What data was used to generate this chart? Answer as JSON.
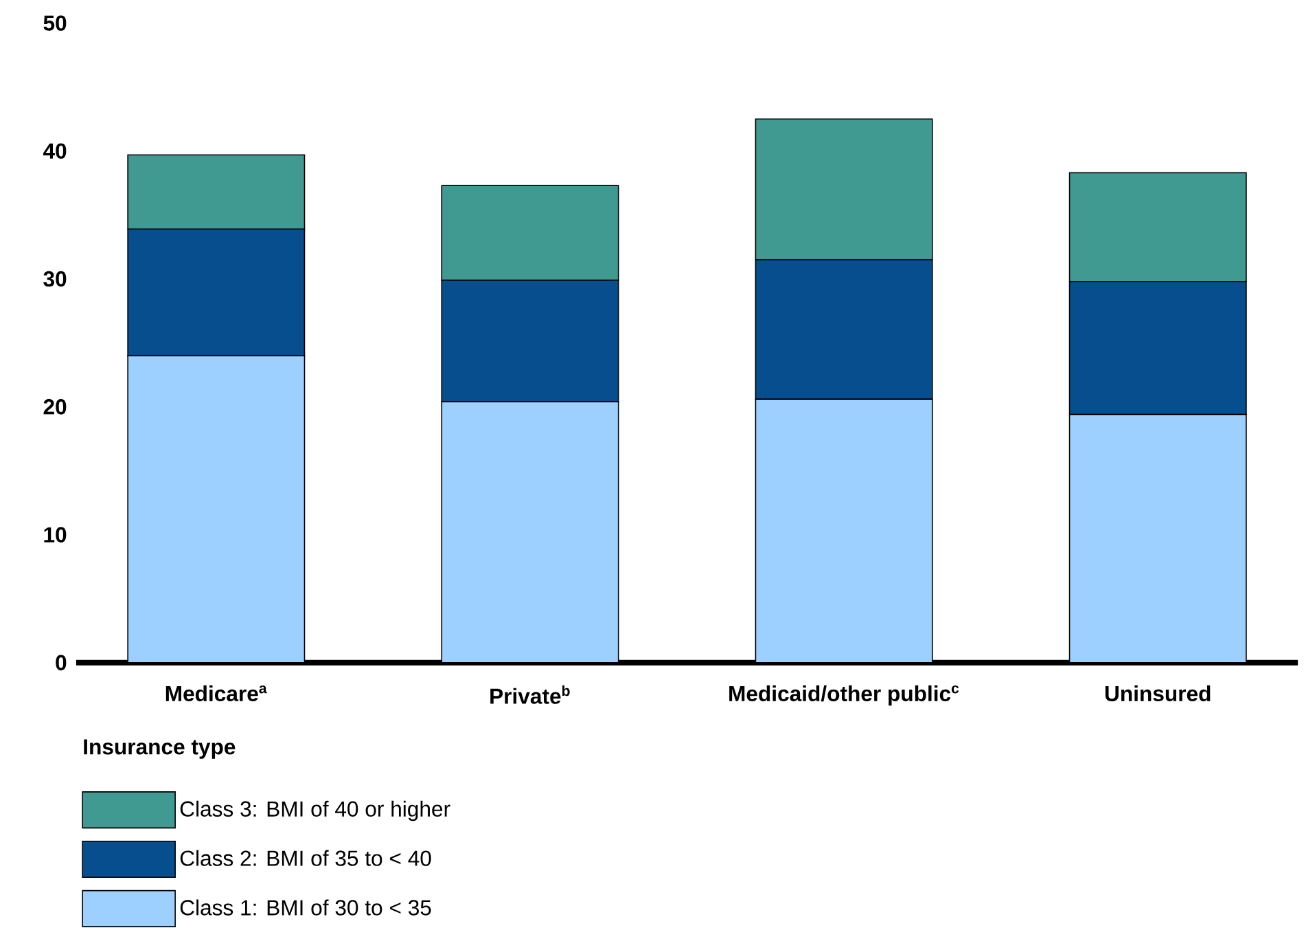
{
  "chart_data": {
    "type": "bar",
    "stacked": true,
    "xlabel": "Insurance type",
    "categories": [
      "Medicare$^{a}$",
      "Private$^{b}$",
      "Medicaid/other public$^{c}$",
      "Uninsured"
    ],
    "series": [
      {
        "name": "Class 1: BMI of 30 to < 35",
        "color": "#9dcfff",
        "values": [
          24.0,
          20.4,
          20.6,
          19.4
        ]
      },
      {
        "name": "Class 2: BMI of 35 to < 40",
        "color": "#064e8e",
        "values": [
          9.9,
          9.5,
          10.9,
          10.4
        ]
      },
      {
        "name": "Class 3: BMI of 40 or higher",
        "color": "#409a92",
        "values": [
          5.8,
          7.4,
          11.0,
          8.5
        ]
      }
    ],
    "ylim": [
      0,
      50
    ],
    "yticks": [
      0,
      10,
      20,
      30,
      40,
      50
    ],
    "legend": "bottom left"
  }
}
